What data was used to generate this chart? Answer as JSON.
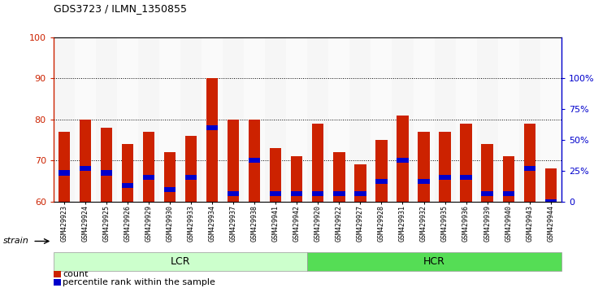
{
  "title": "GDS3723 / ILMN_1350855",
  "categories": [
    "GSM429923",
    "GSM429924",
    "GSM429925",
    "GSM429926",
    "GSM429929",
    "GSM429930",
    "GSM429933",
    "GSM429934",
    "GSM429937",
    "GSM429938",
    "GSM429941",
    "GSM429942",
    "GSM429920",
    "GSM429922",
    "GSM429927",
    "GSM429928",
    "GSM429931",
    "GSM429932",
    "GSM429935",
    "GSM429936",
    "GSM429939",
    "GSM429940",
    "GSM429943",
    "GSM429944"
  ],
  "count_values": [
    77,
    80,
    78,
    74,
    77,
    72,
    76,
    90,
    80,
    80,
    73,
    71,
    79,
    72,
    69,
    75,
    81,
    77,
    77,
    79,
    74,
    71,
    79,
    68
  ],
  "percentile_values": [
    67,
    68,
    67,
    64,
    66,
    63,
    66,
    78,
    62,
    70,
    62,
    62,
    62,
    62,
    62,
    65,
    70,
    65,
    66,
    66,
    62,
    62,
    68,
    60
  ],
  "bar_color": "#cc2200",
  "percentile_color": "#0000cc",
  "ymin": 60,
  "ymax": 100,
  "y_ticks_left": [
    60,
    70,
    80,
    90,
    100
  ],
  "y_ticks_right_vals": [
    0,
    25,
    50,
    75,
    100
  ],
  "y_ticks_right_pos": [
    60,
    67.5,
    75,
    82.5,
    90
  ],
  "lcr_label": "LCR",
  "hcr_label": "HCR",
  "strain_label": "strain",
  "lcr_color": "#ccffcc",
  "hcr_color": "#55dd55",
  "legend_count": "count",
  "legend_percentile": "percentile rank within the sample",
  "right_axis_color": "#0000cc",
  "left_axis_color": "#cc2200",
  "tick_bg_even": "#dddddd",
  "tick_bg_odd": "#eeeeee"
}
